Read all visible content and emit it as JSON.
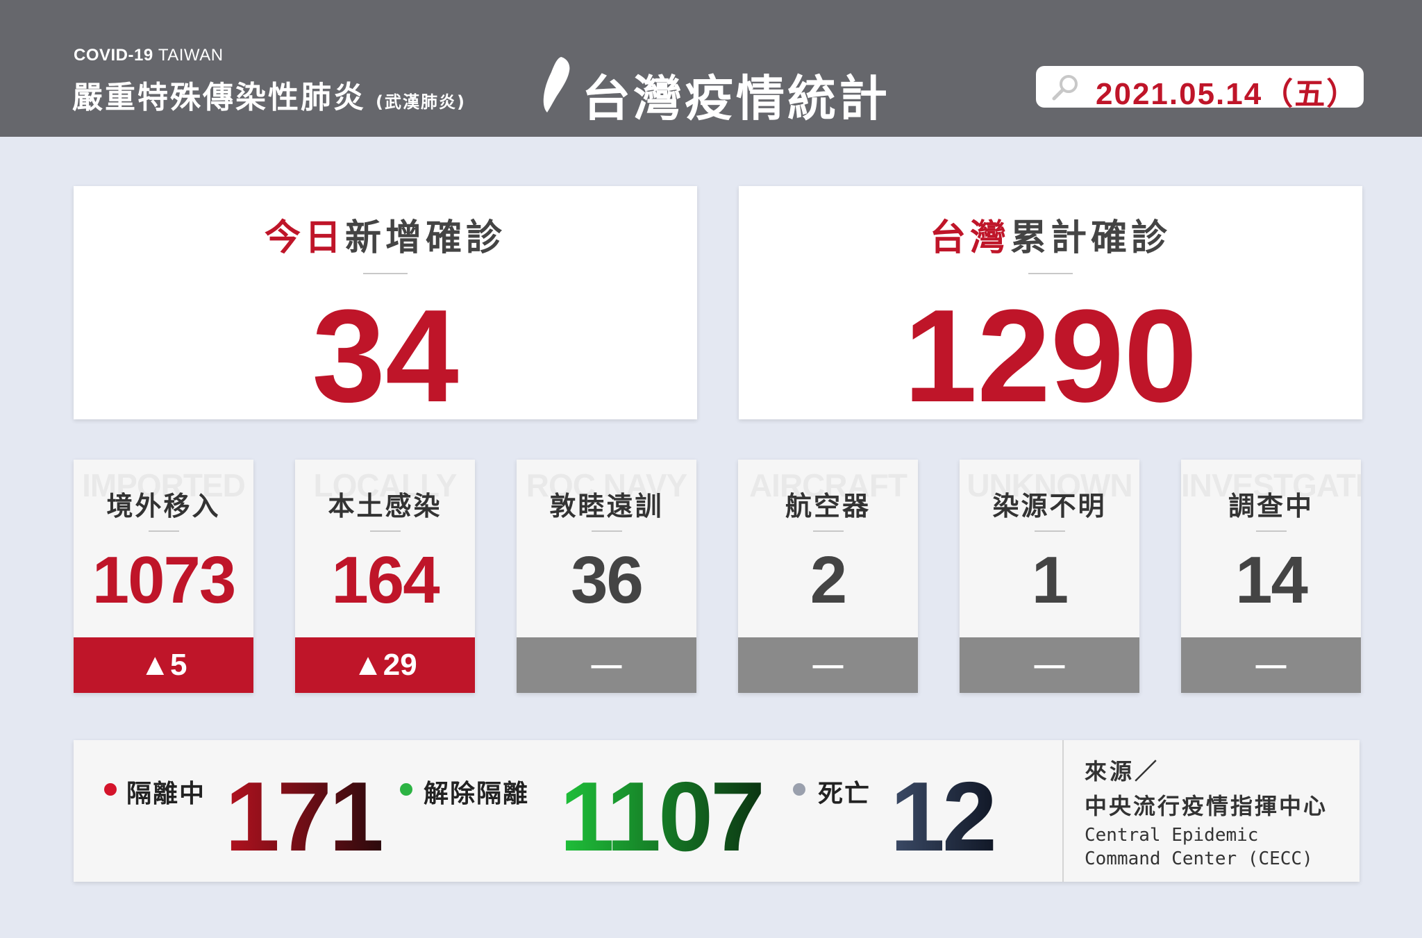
{
  "header": {
    "subtitle_en_bold": "COVID-19",
    "subtitle_en_light": "TAIWAN",
    "subtitle_zh": "嚴重特殊傳染性肺炎",
    "subtitle_zh_paren": "(武漢肺炎)",
    "title": "台灣疫情統計",
    "date": "2021.05.14（五）"
  },
  "daily_new": {
    "title_red": "今日",
    "title_rest": "新增確診",
    "value": "34"
  },
  "total_confirmed": {
    "title_red": "台灣",
    "title_rest": "累計確診",
    "value": "1290"
  },
  "categories": [
    {
      "ghost": "IMPORTED",
      "label": "境外移入",
      "value": "1073",
      "change": "▲5"
    },
    {
      "ghost": "LOCALLY",
      "label": "本土感染",
      "value": "164",
      "change": "▲29"
    },
    {
      "ghost": "ROC NAVY",
      "label": "敦睦遠訓",
      "value": "36",
      "change": "—"
    },
    {
      "ghost": "AIRCRAFT",
      "label": "航空器",
      "value": "2",
      "change": "—"
    },
    {
      "ghost": "UNKNOWN",
      "label": "染源不明",
      "value": "1",
      "change": "—"
    },
    {
      "ghost": "INVESTGATING",
      "label": "調查中",
      "value": "14",
      "change": "—"
    }
  ],
  "status": {
    "isolating": {
      "label": "隔離中",
      "value": "171"
    },
    "released": {
      "label": "解除隔離",
      "value": "1107"
    },
    "deaths": {
      "label": "死亡",
      "value": "12"
    }
  },
  "source": {
    "label": "來源／",
    "name_zh": "中央流行疫情指揮中心",
    "name_en_1": "Central Epidemic",
    "name_en_2": "Command Center (CECC)"
  },
  "colors": {
    "accent_red": "#bf1529",
    "header_gray": "#66676c",
    "background": "#e4e8f2",
    "dot_red": "#d4142b",
    "dot_green": "#2cb343",
    "dot_gray": "#9aa0ad",
    "neutral_bar": "#8a8a8a"
  },
  "icons": {
    "taiwan": "taiwan-map-icon",
    "search": "magnifier-icon"
  }
}
